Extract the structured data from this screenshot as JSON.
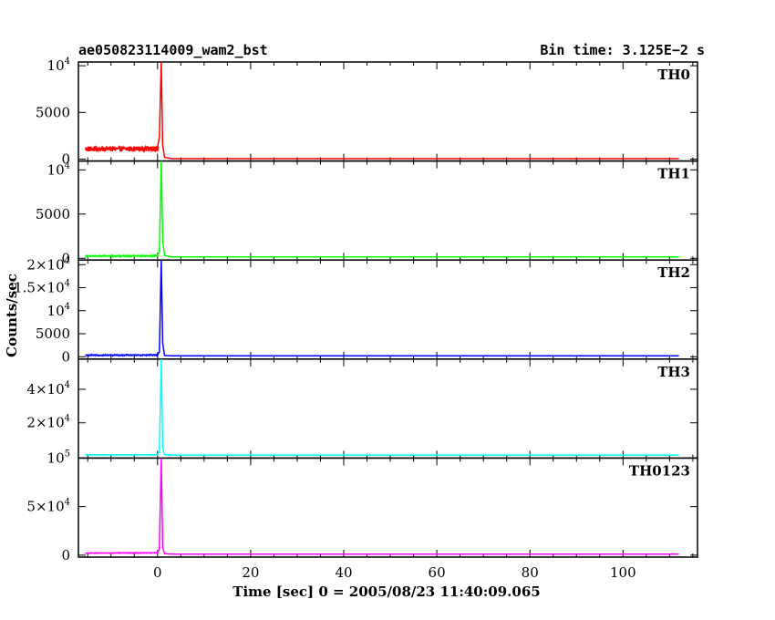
{
  "header": {
    "left": "ae050823114009_wam2_bst",
    "right": "Bin time: 3.125E−2 s"
  },
  "chart_data": {
    "type": "line",
    "xlabel": "Time [sec] 0 = 2005/08/23 11:40:09.065",
    "ylabel": "Counts/sec",
    "xlim": [
      -17,
      116
    ],
    "x_ticks": [
      0,
      20,
      40,
      60,
      80,
      100
    ],
    "x_tick_labels": [
      "0",
      "20",
      "40",
      "60",
      "80",
      "100"
    ],
    "panels": [
      {
        "name": "TH0",
        "color": "#ff0000",
        "ylim": [
          -200,
          10400
        ],
        "y_ticks": [
          {
            "value": 0,
            "label": "0"
          },
          {
            "value": 5000,
            "label": "5000"
          },
          {
            "value": 10000,
            "base": "10",
            "exp": "4"
          }
        ],
        "noisy_interval": [
          -15.5,
          0.2
        ],
        "pre_burst_mean": 1100,
        "pre_burst_amplitude": 300,
        "series": {
          "x": [
            -15.5,
            -12,
            -8,
            -4,
            -1,
            0,
            0.4,
            0.8,
            1.1,
            1.5,
            3,
            112
          ],
          "y": [
            1000,
            1150,
            1150,
            1100,
            1300,
            1250,
            2400,
            10400,
            1500,
            200,
            50,
            50
          ]
        }
      },
      {
        "name": "TH1",
        "color": "#00ff00",
        "ylim": [
          -200,
          11000
        ],
        "y_ticks": [
          {
            "value": 0,
            "label": "0"
          },
          {
            "value": 5000,
            "label": "5000"
          },
          {
            "value": 10000,
            "base": "10",
            "exp": "4"
          }
        ],
        "noisy_interval": [
          -15.5,
          0.2
        ],
        "pre_burst_mean": 250,
        "pre_burst_amplitude": 80,
        "series": {
          "x": [
            -15.5,
            -8,
            -1,
            0,
            0.4,
            0.8,
            1.1,
            1.5,
            3,
            112
          ],
          "y": [
            230,
            270,
            300,
            380,
            700,
            11000,
            2000,
            300,
            150,
            150
          ]
        }
      },
      {
        "name": "TH2",
        "color": "#0000ff",
        "ylim": [
          -500,
          21000
        ],
        "y_ticks": [
          {
            "value": 0,
            "label": "0"
          },
          {
            "value": 5000,
            "label": "5000"
          },
          {
            "value": 10000,
            "base": "10",
            "exp": "4"
          },
          {
            "value": 15000,
            "mantissa": "1.5×",
            "base": "10",
            "exp": "4"
          },
          {
            "value": 20000,
            "mantissa": "2×",
            "base": "10",
            "exp": "4"
          }
        ],
        "noisy_interval": [
          -15.5,
          0.2
        ],
        "pre_burst_mean": 350,
        "pre_burst_amplitude": 150,
        "series": {
          "x": [
            -15.5,
            -8,
            -1,
            0,
            0.4,
            0.8,
            1.1,
            1.5,
            3,
            112
          ],
          "y": [
            300,
            350,
            400,
            500,
            1000,
            21000,
            3000,
            300,
            200,
            200
          ]
        }
      },
      {
        "name": "TH3",
        "color": "#00ffff",
        "ylim": [
          -1000,
          58000
        ],
        "y_ticks": [
          {
            "value": 20000,
            "mantissa": "2×",
            "base": "10",
            "exp": "4"
          },
          {
            "value": 40000,
            "mantissa": "4×",
            "base": "10",
            "exp": "4"
          }
        ],
        "noisy_interval": [
          -15.5,
          0.2
        ],
        "pre_burst_mean": 900,
        "pre_burst_amplitude": 150,
        "series": {
          "x": [
            -15.5,
            -8,
            -1,
            0,
            0.4,
            0.8,
            1.1,
            1.5,
            3,
            112
          ],
          "y": [
            900,
            900,
            950,
            1200,
            2500,
            58000,
            5000,
            1100,
            800,
            800
          ]
        }
      },
      {
        "name": "TH0123",
        "color": "#ff00ff",
        "ylim": [
          -2000,
          100000
        ],
        "y_ticks": [
          {
            "value": 0,
            "label": "0"
          },
          {
            "value": 50000,
            "mantissa": "5×",
            "base": "10",
            "exp": "4"
          },
          {
            "value": 100000,
            "base": "10",
            "exp": "5"
          }
        ],
        "noisy_interval": [
          -15.5,
          0.2
        ],
        "pre_burst_mean": 2200,
        "pre_burst_amplitude": 350,
        "series": {
          "x": [
            -15.5,
            -8,
            -1,
            0,
            0.4,
            0.8,
            1.1,
            1.5,
            3,
            112
          ],
          "y": [
            2000,
            2300,
            2400,
            3000,
            6000,
            100000,
            8000,
            1500,
            1000,
            1000
          ]
        }
      }
    ]
  }
}
